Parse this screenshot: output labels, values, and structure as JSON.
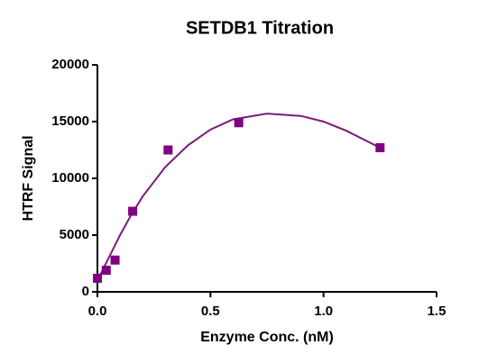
{
  "chart_data": {
    "type": "scatter",
    "title": "SETDB1 Titration",
    "x_label": "Enzyme Conc. (nM)",
    "y_label": "HTRF Signal",
    "xlim": [
      0,
      1.5
    ],
    "ylim": [
      0,
      20000
    ],
    "xticks": [
      {
        "value": 0,
        "label": "0.0"
      },
      0.5,
      {
        "value": 1,
        "label": "1.0"
      },
      1.5
    ],
    "yticks": [
      0,
      5000,
      10000,
      15000,
      20000
    ],
    "series": [
      {
        "type": "scatter",
        "marker": "square",
        "color": "#800080",
        "x": [
          0,
          0.039,
          0.078,
          0.156,
          0.3125,
          0.625,
          1.25
        ],
        "values": [
          1200,
          1900,
          2800,
          7100,
          12500,
          14900,
          12700
        ]
      },
      {
        "type": "line",
        "color": "#7a1a7a",
        "x": [
          0,
          0.05,
          0.1,
          0.15,
          0.2,
          0.3,
          0.4,
          0.5,
          0.6,
          0.75,
          0.9,
          1.0,
          1.1,
          1.25
        ],
        "values": [
          1000,
          3000,
          5000,
          6800,
          8400,
          11000,
          12900,
          14300,
          15200,
          15700,
          15500,
          15000,
          14200,
          12700
        ]
      }
    ]
  }
}
